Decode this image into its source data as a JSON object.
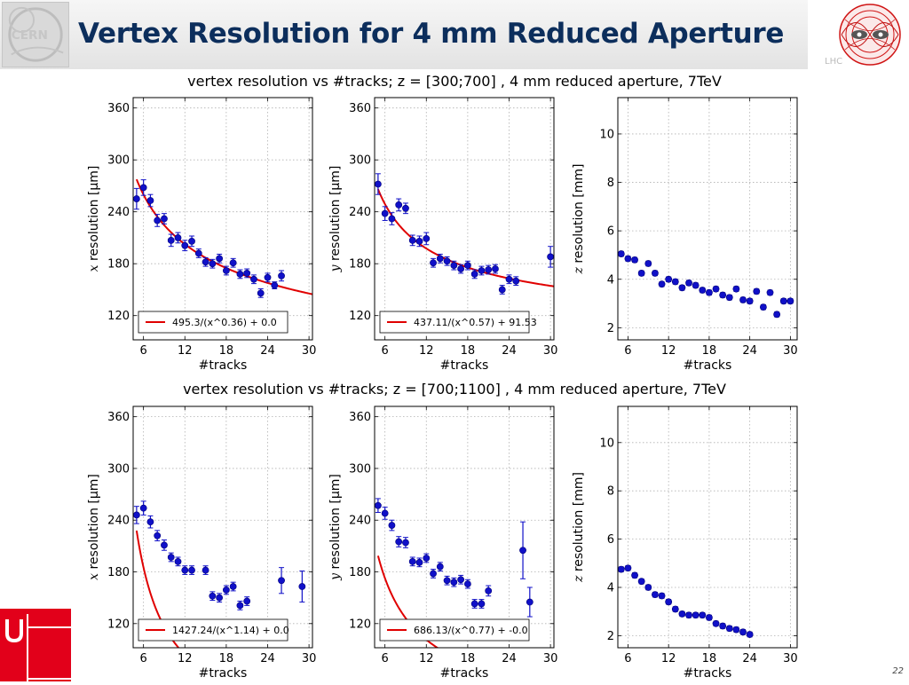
{
  "slide": {
    "title": "Vertex Resolution for 4 mm Reduced Aperture",
    "lhc_text": "LHC",
    "page_number": "22",
    "row_titles": [
      "vertex resolution vs #tracks; z = [300;700] , 4 mm reduced aperture, 7TeV",
      "vertex resolution vs #tracks; z = [700;1100] , 4 mm reduced aperture, 7TeV"
    ],
    "colors": {
      "title": "#0c2e5c",
      "marker": "#1010c8",
      "fit": "#e00000",
      "uni_red": "#e2001a"
    }
  },
  "chart_data": [
    {
      "type": "scatter",
      "xlabel": "#tracks",
      "ylabel_var": "x",
      "ylabel": "resolution [μm]",
      "xlim": [
        4.5,
        30.5
      ],
      "ylim": [
        92,
        372
      ],
      "xticks": [
        6,
        12,
        18,
        24,
        30
      ],
      "yticks": [
        120,
        180,
        240,
        300,
        360
      ],
      "grid": true,
      "legend": "495.3/(x^0.36) + 0.0",
      "legend_location": "lower-left",
      "fit": {
        "a": 495.3,
        "p": 0.36,
        "c": 0.0,
        "x_start": 5
      },
      "x": [
        5,
        6,
        7,
        8,
        9,
        10,
        11,
        12,
        13,
        14,
        15,
        16,
        17,
        18,
        19,
        20,
        21,
        22,
        23,
        24,
        25,
        26
      ],
      "y": [
        255,
        268,
        253,
        230,
        232,
        207,
        210,
        201,
        206,
        192,
        182,
        180,
        186,
        172,
        181,
        168,
        169,
        162,
        146,
        164,
        155,
        166
      ],
      "yerr": [
        12,
        9,
        7,
        7,
        6,
        7,
        6,
        6,
        6,
        5,
        5,
        5,
        5,
        5,
        5,
        5,
        5,
        5,
        5,
        5,
        4,
        6
      ]
    },
    {
      "type": "scatter",
      "xlabel": "#tracks",
      "ylabel_var": "y",
      "ylabel": "resolution [μm]",
      "xlim": [
        4.5,
        30.5
      ],
      "ylim": [
        92,
        372
      ],
      "xticks": [
        6,
        12,
        18,
        24,
        30
      ],
      "yticks": [
        120,
        180,
        240,
        300,
        360
      ],
      "grid": true,
      "legend": "437.11/(x^0.57) + 91.53",
      "legend_location": "lower-left",
      "fit": {
        "a": 437.11,
        "p": 0.57,
        "c": 91.53,
        "x_start": 5
      },
      "x": [
        5,
        6,
        7,
        8,
        9,
        10,
        11,
        12,
        13,
        14,
        15,
        16,
        17,
        18,
        19,
        20,
        21,
        22,
        23,
        24,
        25,
        30
      ],
      "y": [
        272,
        238,
        232,
        248,
        244,
        207,
        206,
        209,
        181,
        186,
        183,
        178,
        174,
        178,
        168,
        172,
        173,
        174,
        150,
        162,
        160,
        188
      ],
      "yerr": [
        12,
        8,
        7,
        7,
        6,
        6,
        6,
        7,
        5,
        5,
        5,
        5,
        5,
        5,
        5,
        5,
        5,
        5,
        5,
        5,
        5,
        12
      ]
    },
    {
      "type": "scatter",
      "xlabel": "#tracks",
      "ylabel_var": "z",
      "ylabel": "resolution [mm]",
      "xlim": [
        4.5,
        31
      ],
      "ylim": [
        1.5,
        11.5
      ],
      "xticks": [
        6,
        12,
        18,
        24,
        30
      ],
      "yticks": [
        2,
        4,
        6,
        8,
        10
      ],
      "grid": true,
      "x": [
        5,
        6,
        7,
        8,
        9,
        10,
        11,
        12,
        13,
        14,
        15,
        16,
        17,
        18,
        19,
        20,
        21,
        22,
        23,
        24,
        25,
        26,
        27,
        28,
        29,
        30
      ],
      "y": [
        5.05,
        4.85,
        4.8,
        4.25,
        4.65,
        4.25,
        3.8,
        4.0,
        3.9,
        3.65,
        3.85,
        3.75,
        3.55,
        3.45,
        3.6,
        3.35,
        3.25,
        3.6,
        3.15,
        3.1,
        3.5,
        2.85,
        3.45,
        2.55,
        3.1,
        3.1
      ],
      "yerr": [
        0.1,
        0.1,
        0.1,
        0.1,
        0.1,
        0.1,
        0.1,
        0.1,
        0.1,
        0.1,
        0.1,
        0.1,
        0.1,
        0.1,
        0.1,
        0.1,
        0.1,
        0.1,
        0.1,
        0.1,
        0.1,
        0.1,
        0.1,
        0.1,
        0.1,
        0.1
      ]
    },
    {
      "type": "scatter",
      "xlabel": "#tracks",
      "ylabel_var": "x",
      "ylabel": "resolution [μm]",
      "xlim": [
        4.5,
        30.5
      ],
      "ylim": [
        92,
        372
      ],
      "xticks": [
        6,
        12,
        18,
        24,
        30
      ],
      "yticks": [
        120,
        180,
        240,
        300,
        360
      ],
      "grid": true,
      "legend": "1427.24/(x^1.14) + 0.0",
      "legend_location": "lower-left",
      "fit": {
        "a": 1427.24,
        "p": 1.14,
        "c": 0.0,
        "x_start": 5
      },
      "x": [
        5,
        6,
        7,
        8,
        9,
        10,
        11,
        12,
        13,
        15,
        16,
        17,
        18,
        19,
        20,
        21,
        26,
        29
      ],
      "y": [
        246,
        254,
        238,
        222,
        211,
        197,
        192,
        182,
        182,
        182,
        152,
        150,
        159,
        163,
        141,
        146,
        170,
        163
      ],
      "yerr": [
        10,
        8,
        7,
        6,
        6,
        5,
        5,
        5,
        5,
        5,
        5,
        5,
        5,
        5,
        5,
        5,
        15,
        18
      ]
    },
    {
      "type": "scatter",
      "xlabel": "#tracks",
      "ylabel_var": "y",
      "ylabel": "resolution [μm]",
      "xlim": [
        4.5,
        30.5
      ],
      "ylim": [
        92,
        372
      ],
      "xticks": [
        6,
        12,
        18,
        24,
        30
      ],
      "yticks": [
        120,
        180,
        240,
        300,
        360
      ],
      "grid": true,
      "legend": "686.13/(x^0.77) + -0.0",
      "legend_location": "lower-left",
      "fit": {
        "a": 686.13,
        "p": 0.77,
        "c": 0.0,
        "x_start": 5
      },
      "x": [
        5,
        6,
        7,
        8,
        9,
        10,
        11,
        12,
        13,
        14,
        15,
        16,
        17,
        18,
        19,
        20,
        21,
        26,
        27
      ],
      "y": [
        257,
        248,
        234,
        215,
        214,
        192,
        191,
        196,
        178,
        186,
        170,
        168,
        171,
        166,
        143,
        143,
        158,
        205,
        145
      ],
      "yerr": [
        8,
        7,
        6,
        6,
        6,
        5,
        5,
        5,
        5,
        5,
        5,
        5,
        5,
        5,
        5,
        5,
        6,
        33,
        17
      ]
    },
    {
      "type": "scatter",
      "xlabel": "#tracks",
      "ylabel_var": "z",
      "ylabel": "resolution [mm]",
      "xlim": [
        4.5,
        31
      ],
      "ylim": [
        1.5,
        11.5
      ],
      "xticks": [
        6,
        12,
        18,
        24,
        30
      ],
      "yticks": [
        2,
        4,
        6,
        8,
        10
      ],
      "grid": true,
      "x": [
        5,
        6,
        7,
        8,
        9,
        10,
        11,
        12,
        13,
        14,
        15,
        16,
        17,
        18,
        19,
        20,
        21,
        22,
        23,
        24
      ],
      "y": [
        4.75,
        4.8,
        4.5,
        4.25,
        4.0,
        3.7,
        3.65,
        3.4,
        3.1,
        2.9,
        2.85,
        2.85,
        2.85,
        2.75,
        2.5,
        2.4,
        2.3,
        2.25,
        2.15,
        2.05
      ],
      "yerr": [
        0.1,
        0.1,
        0.1,
        0.1,
        0.1,
        0.1,
        0.1,
        0.1,
        0.1,
        0.1,
        0.1,
        0.1,
        0.1,
        0.1,
        0.1,
        0.1,
        0.1,
        0.1,
        0.1,
        0.1
      ]
    }
  ]
}
